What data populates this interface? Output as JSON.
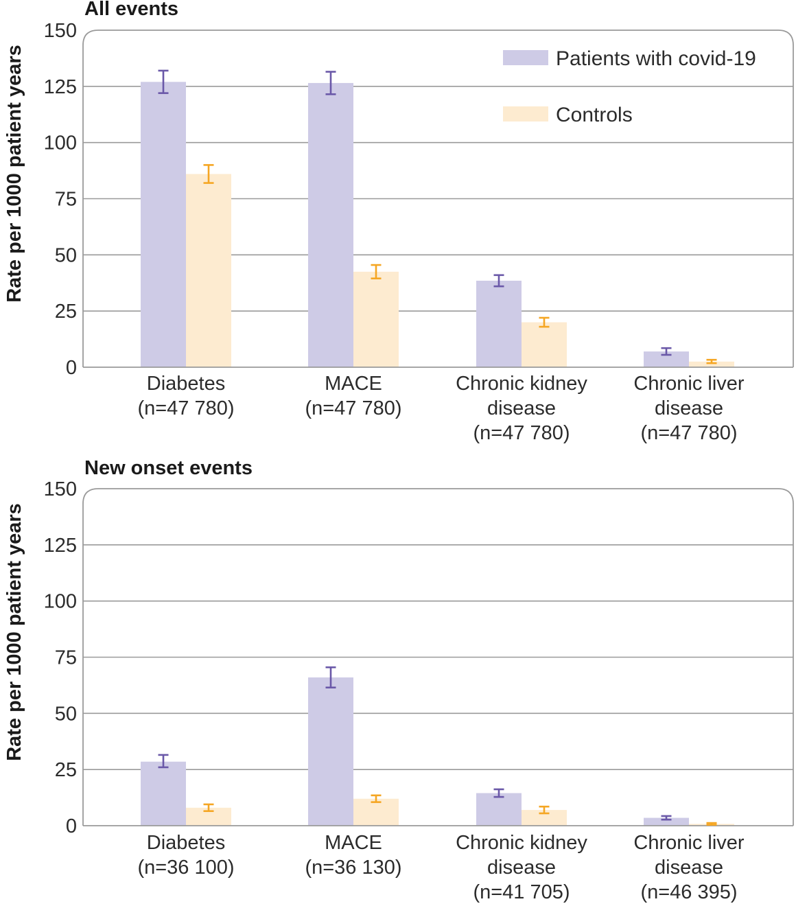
{
  "chart_data": [
    {
      "type": "bar",
      "title": "All events",
      "ylabel": "Rate per 1000 patient years",
      "ylim": [
        0,
        150
      ],
      "yticks": [
        0,
        25,
        50,
        75,
        100,
        125,
        150
      ],
      "categories": [
        [
          "Diabetes",
          "(n=47 780)"
        ],
        [
          "MACE",
          "(n=47 780)"
        ],
        [
          "Chronic kidney",
          "disease",
          "(n=47 780)"
        ],
        [
          "Chronic liver",
          "disease",
          "(n=47 780)"
        ]
      ],
      "legend": {
        "show": true,
        "placement": "top-right"
      },
      "series": [
        {
          "name": "Patients with covid-19",
          "color": "#cecbe6",
          "error_color": "#6a58a8",
          "values": [
            127,
            126.5,
            38.5,
            7
          ],
          "lower": [
            122,
            121.5,
            36,
            5.5
          ],
          "upper": [
            132,
            131.5,
            41,
            8.5
          ]
        },
        {
          "name": "Controls",
          "color": "#fdebd0",
          "error_color": "#f5a623",
          "values": [
            86,
            42.5,
            20,
            2.5
          ],
          "lower": [
            82,
            39.5,
            18,
            1.8
          ],
          "upper": [
            90,
            45.5,
            22,
            3.3
          ]
        }
      ]
    },
    {
      "type": "bar",
      "title": "New onset events",
      "ylabel": "Rate per 1000 patient years",
      "ylim": [
        0,
        150
      ],
      "yticks": [
        0,
        25,
        50,
        75,
        100,
        125,
        150
      ],
      "categories": [
        [
          "Diabetes",
          "(n=36 100)"
        ],
        [
          "MACE",
          "(n=36 130)"
        ],
        [
          "Chronic kidney",
          "disease",
          "(n=41 705)"
        ],
        [
          "Chronic liver",
          "disease",
          "(n=46 395)"
        ]
      ],
      "legend": {
        "show": false
      },
      "series": [
        {
          "name": "Patients with covid-19",
          "color": "#cecbe6",
          "error_color": "#6a58a8",
          "values": [
            28.5,
            66,
            14.5,
            3.5
          ],
          "lower": [
            26,
            61.5,
            12.8,
            2.7
          ],
          "upper": [
            31.5,
            70.5,
            16.2,
            4.3
          ]
        },
        {
          "name": "Controls",
          "color": "#fdebd0",
          "error_color": "#f5a623",
          "values": [
            8,
            12,
            7,
            0.8
          ],
          "lower": [
            6.5,
            10.5,
            5.5,
            0.4
          ],
          "upper": [
            9.5,
            13.5,
            8.5,
            1.2
          ]
        }
      ]
    }
  ]
}
